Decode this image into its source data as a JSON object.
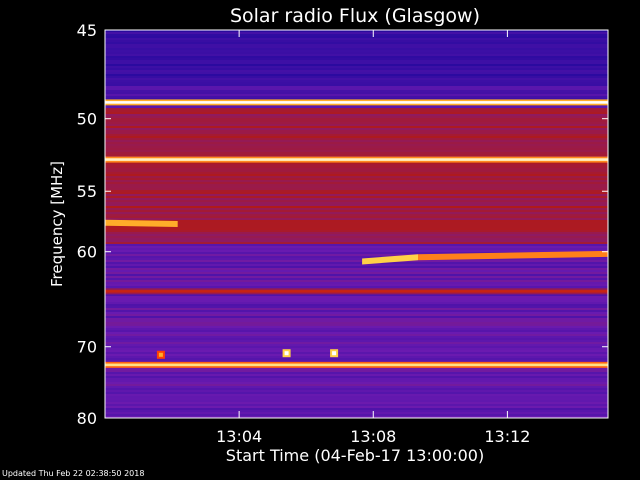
{
  "chart_data": {
    "type": "heatmap",
    "title": "Solar radio Flux (Glasgow)",
    "xlabel": "Start Time (04-Feb-17 13:00:00)",
    "ylabel": "Frequency [MHz]",
    "xlim": [
      "13:00:00",
      "13:15:00"
    ],
    "ylim": [
      45,
      80
    ],
    "yscale": "reciprocal",
    "x_ticks": [
      "13:04",
      "13:08",
      "13:12"
    ],
    "y_ticks": [
      45,
      50,
      55,
      60,
      70,
      80
    ],
    "colormap": [
      "#0a0050",
      "#2a0aa0",
      "#6a1ab0",
      "#b01a1a",
      "#ff3300",
      "#ffcc33",
      "#ffffff"
    ],
    "features": [
      {
        "kind": "band",
        "frequency": 49,
        "intensity": 1.0
      },
      {
        "kind": "band",
        "frequency": 52.7,
        "intensity": 0.95
      },
      {
        "kind": "band",
        "frequency": 72.3,
        "intensity": 0.9
      },
      {
        "kind": "band",
        "frequency": 63.8,
        "intensity": 0.55
      },
      {
        "kind": "burst",
        "frequency_start": 57.5,
        "frequency_end": 57.6,
        "time_start": "13:00:00",
        "time_end": "13:02:10",
        "intensity": 0.8
      },
      {
        "kind": "burst",
        "frequency_start": 60.9,
        "frequency_end": 60.5,
        "time_start": "13:07:40",
        "time_end": "13:09:20",
        "intensity": 0.85
      },
      {
        "kind": "burst",
        "frequency_start": 60.5,
        "frequency_end": 60.2,
        "time_start": "13:09:20",
        "time_end": "13:15:00",
        "intensity": 0.75
      },
      {
        "kind": "spot",
        "frequency": 70.8,
        "time": "13:05:25",
        "intensity": 1.0
      },
      {
        "kind": "spot",
        "frequency": 70.8,
        "time": "13:06:50",
        "intensity": 1.0
      },
      {
        "kind": "spot",
        "frequency": 71.0,
        "time": "13:01:40",
        "intensity": 0.8
      }
    ]
  },
  "footer": {
    "updated": "Updated Thu Feb 22 02:38:50 2018"
  }
}
